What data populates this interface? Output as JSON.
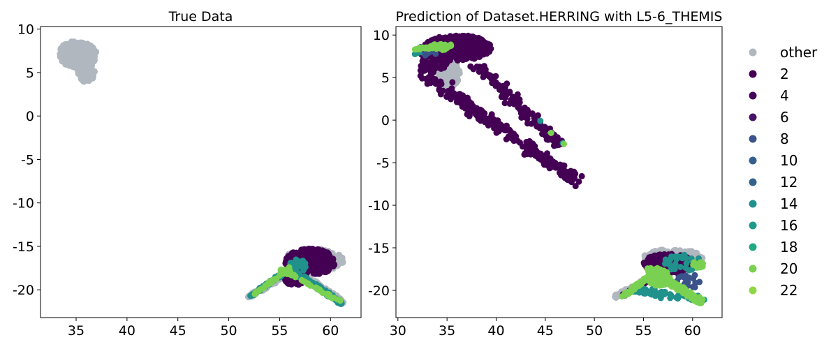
{
  "chart_data": [
    {
      "type": "scatter",
      "title": "True Data",
      "xlabel": "",
      "ylabel": "",
      "xlim": [
        31.5,
        63
      ],
      "ylim": [
        -23.2,
        10.3
      ],
      "xticks": [
        35,
        40,
        45,
        50,
        55,
        60
      ],
      "yticks": [
        10,
        5,
        0,
        -5,
        -10,
        -15,
        -20
      ],
      "grid": false,
      "regions": [
        {
          "series": "other",
          "desc": "upper-left grey cluster",
          "x_range": [
            33,
            37
          ],
          "y_range": [
            3.8,
            8.6
          ]
        },
        {
          "series": "other",
          "desc": "lower-right grey cluster",
          "x_range": [
            52,
            61.5
          ],
          "y_range": [
            -21.5,
            -15.3
          ]
        },
        {
          "series": "2",
          "desc": "purple core of lower-right cluster",
          "x_range": [
            55.5,
            61
          ],
          "y_range": [
            -19.5,
            -15.5
          ]
        },
        {
          "series": "14",
          "desc": "teal arm",
          "x_range": [
            52,
            61
          ],
          "y_range": [
            -21.5,
            -17
          ]
        },
        {
          "series": "20",
          "desc": "green points along arm",
          "x_range": [
            52,
            61
          ],
          "y_range": [
            -21.2,
            -17.5
          ]
        }
      ]
    },
    {
      "type": "scatter",
      "title": "Prediction of Dataset.HERRING with L5-6_THEMIS",
      "xlabel": "",
      "ylabel": "",
      "xlim": [
        29.8,
        63
      ],
      "ylim": [
        -23.2,
        11
      ],
      "xticks": [
        30,
        35,
        40,
        45,
        50,
        55,
        60
      ],
      "yticks": [
        10,
        5,
        0,
        -5,
        -10,
        -15,
        -20
      ],
      "grid": false,
      "regions": [
        {
          "series": "other",
          "desc": "grey cluster near (35,5)",
          "x_range": [
            33.5,
            36.5
          ],
          "y_range": [
            3.5,
            8
          ]
        },
        {
          "series": "other",
          "desc": "grey lower-right cluster",
          "x_range": [
            52,
            61.5
          ],
          "y_range": [
            -21.5,
            -15
          ]
        },
        {
          "series": "2",
          "desc": "purple dense band upper-left",
          "x_range": [
            32,
            41
          ],
          "y_range": [
            5,
            10.5
          ]
        },
        {
          "series": "2",
          "desc": "purple diagonal tail",
          "x_range": [
            32,
            48.5
          ],
          "y_range": [
            -7.2,
            5
          ]
        },
        {
          "series": "2",
          "desc": "purple lower-right cluster",
          "x_range": [
            55,
            61
          ],
          "y_range": [
            -19,
            -15.5
          ]
        },
        {
          "series": "14",
          "desc": "teal points",
          "x_range": [
            31,
            61
          ],
          "y_range": [
            -21,
            8
          ]
        },
        {
          "series": "20",
          "desc": "green points upper-left",
          "x_range": [
            31.5,
            36
          ],
          "y_range": [
            7.5,
            8.8
          ]
        },
        {
          "series": "20",
          "desc": "green lower-right arm",
          "x_range": [
            52.5,
            61
          ],
          "y_range": [
            -21.5,
            -17
          ]
        }
      ]
    }
  ],
  "legend": {
    "placement": "right, outside",
    "entries": [
      {
        "label": "other",
        "color": "#b0b7bf"
      },
      {
        "label": "2",
        "color": "#440154"
      },
      {
        "label": "4",
        "color": "#45065a"
      },
      {
        "label": "6",
        "color": "#481467"
      },
      {
        "label": "8",
        "color": "#3b528b"
      },
      {
        "label": "10",
        "color": "#355f8d"
      },
      {
        "label": "12",
        "color": "#33638d"
      },
      {
        "label": "14",
        "color": "#21918c"
      },
      {
        "label": "16",
        "color": "#1f9a8a"
      },
      {
        "label": "18",
        "color": "#22a785"
      },
      {
        "label": "20",
        "color": "#7ad151"
      },
      {
        "label": "22",
        "color": "#8fd744"
      }
    ]
  },
  "colors": {
    "other": "#b0b7bf",
    "purple": "#440154",
    "teal": "#21918c",
    "green": "#7ad151",
    "blue": "#3b528b"
  }
}
